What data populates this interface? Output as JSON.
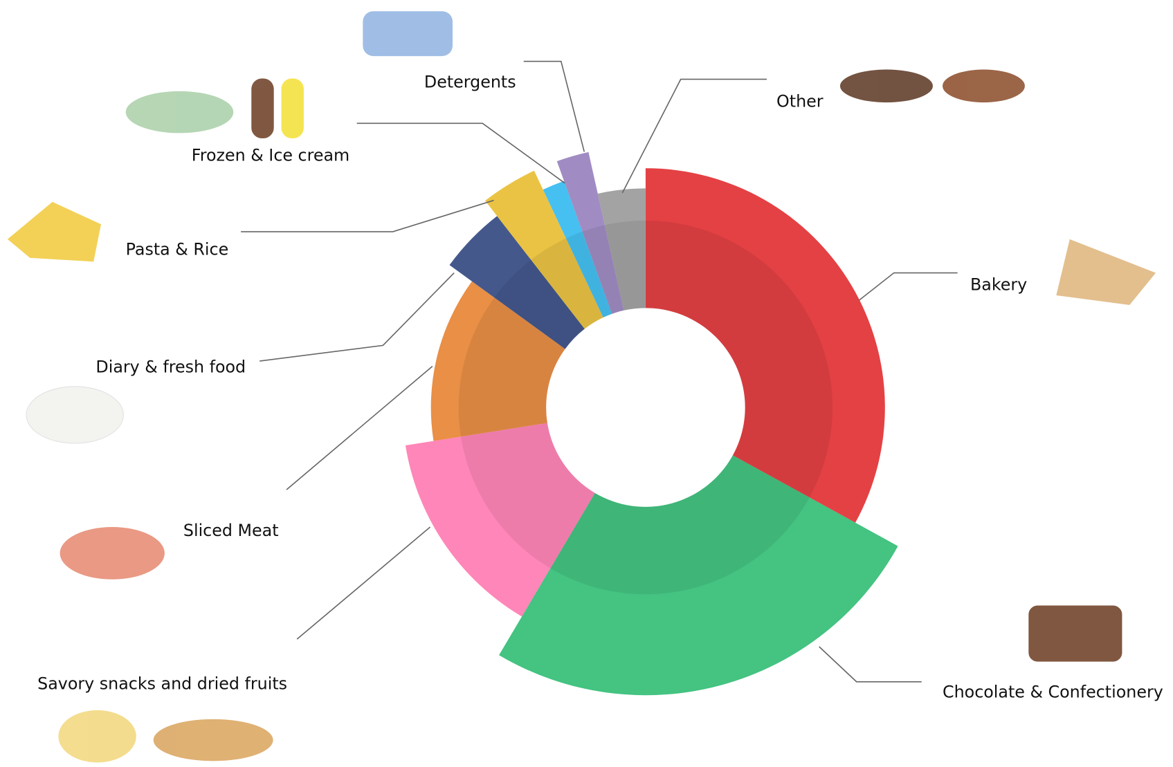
{
  "chart_data": {
    "type": "polar-donut",
    "categories": [
      "Bakery",
      "Chocolate & Confectionery",
      "Savory snacks and dried fruits",
      "Sliced Meat",
      "Diary & fresh food",
      "Pasta & Rice",
      "Frozen & Ice cream",
      "Detergents",
      "Other"
    ],
    "values": [
      33,
      25.5,
      14,
      12.5,
      4.5,
      3.5,
      1.5,
      2,
      3.5
    ],
    "radii": [
      320,
      385,
      325,
      287,
      324,
      350,
      322,
      350,
      293
    ],
    "rlim": [
      0,
      400
    ],
    "colors": [
      "#e3373a",
      "#3ac07a",
      "#ff80b4",
      "#e8893c",
      "#3a4f86",
      "#e9c03a",
      "#3bbdf0",
      "#9b86c0",
      "#9e9e9e"
    ]
  }
}
